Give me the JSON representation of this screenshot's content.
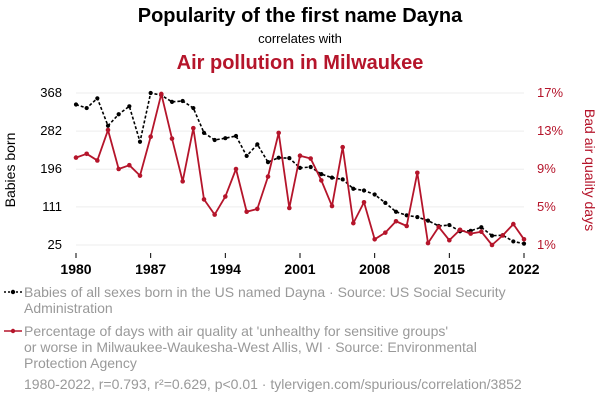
{
  "header": {
    "title": "Popularity of the first name Dayna",
    "connector": "correlates with",
    "subtitle": "Air pollution in Milwaukee"
  },
  "legend": {
    "series1_lines": [
      "Babies of all sexes born in the US named Dayna · Source: US Social Security",
      "Administration"
    ],
    "series2_lines": [
      "Percentage of days with air quality at 'unhealthy for sensitive groups'",
      "or worse in Milwaukee-Waukesha-West Allis, WI · Source: Environmental",
      "Protection Agency"
    ]
  },
  "footer": "1980-2022, r=0.793, r²=0.629, p<0.01 · tylervigen.com/spurious/correlation/3852",
  "colors": {
    "series1": "#000000",
    "series2": "#b5152b",
    "muted": "#999999",
    "grid": "#eeeeee"
  },
  "chart_data": {
    "type": "line",
    "x": [
      1980,
      1981,
      1982,
      1983,
      1984,
      1985,
      1986,
      1987,
      1988,
      1989,
      1990,
      1991,
      1992,
      1993,
      1994,
      1995,
      1996,
      1997,
      1998,
      1999,
      2000,
      2001,
      2002,
      2003,
      2004,
      2005,
      2006,
      2007,
      2008,
      2009,
      2010,
      2011,
      2012,
      2013,
      2014,
      2015,
      2016,
      2017,
      2018,
      2019,
      2020,
      2021,
      2022
    ],
    "x_ticks": [
      "1980",
      "1987",
      "1994",
      "2001",
      "2008",
      "2015",
      "2022"
    ],
    "xlim": [
      1980,
      2022
    ],
    "series": [
      {
        "axis": "left",
        "values": [
          342,
          334,
          356,
          294,
          320,
          338,
          258,
          368,
          363,
          348,
          350,
          334,
          278,
          262,
          266,
          271,
          226,
          252,
          212,
          222,
          221,
          199,
          201,
          185,
          177,
          173,
          152,
          148,
          139,
          120,
          100,
          92,
          88,
          80,
          68,
          70,
          56,
          57,
          65,
          46,
          47,
          33,
          28
        ]
      },
      {
        "axis": "right",
        "values": [
          10.2,
          10.6,
          9.9,
          13.1,
          9.0,
          9.4,
          8.3,
          12.4,
          16.9,
          12.2,
          7.7,
          13.3,
          5.8,
          4.2,
          6.1,
          9.0,
          4.5,
          4.8,
          8.2,
          12.8,
          4.9,
          10.4,
          10.1,
          7.8,
          5.1,
          11.3,
          3.3,
          5.5,
          1.6,
          2.3,
          3.5,
          3.0,
          8.6,
          1.2,
          2.9,
          1.5,
          2.6,
          2.2,
          2.4,
          1.0,
          2.0,
          3.2,
          1.6
        ]
      }
    ],
    "y_left": {
      "label": "Babies born",
      "ticks": [
        "25",
        "111",
        "196",
        "282",
        "368"
      ],
      "lim": [
        25,
        368
      ]
    },
    "y_right": {
      "label": "Bad air quality days",
      "ticks": [
        "1%",
        "5%",
        "9%",
        "13%",
        "17%"
      ],
      "lim": [
        1,
        17
      ]
    }
  }
}
